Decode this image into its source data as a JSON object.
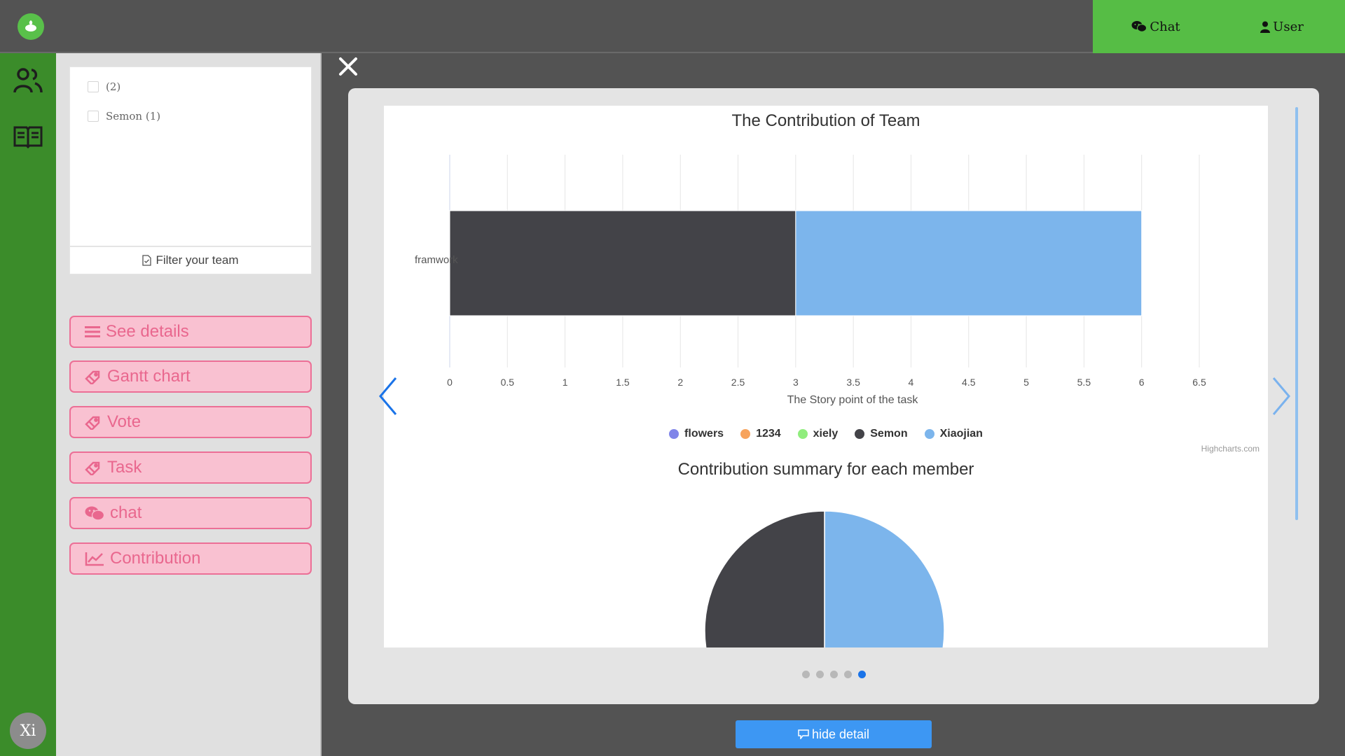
{
  "topnav": {
    "chat_label": "Chat",
    "user_label": "User"
  },
  "sidebar": {
    "avatar_text": "Xi"
  },
  "team_filter": {
    "items": [
      {
        "label": "(2)"
      },
      {
        "label": "Semon (1)"
      }
    ],
    "filter_label": "Filter your team"
  },
  "actions": [
    {
      "label": "See details",
      "icon": "list-icon"
    },
    {
      "label": "Gantt chart",
      "icon": "tag-icon"
    },
    {
      "label": "Vote",
      "icon": "tag-icon"
    },
    {
      "label": "Task",
      "icon": "tag-icon"
    },
    {
      "label": "chat",
      "icon": "wechat-icon"
    },
    {
      "label": "Contribution",
      "icon": "line-chart-icon"
    }
  ],
  "carousel": {
    "slide_count": 5,
    "active_index": 4
  },
  "hide_detail_label": "hide detail",
  "colors": {
    "brand_green": "#56bd45",
    "sidebar_green": "#3b8c2a",
    "pink_fill": "#f9c1d1",
    "pink_border": "#ec6f96",
    "primary_blue": "#3d97f3"
  },
  "chart_data": [
    {
      "type": "bar",
      "orientation": "horizontal",
      "stacked": true,
      "title": "The Contribution of Team",
      "categories": [
        "framwork"
      ],
      "xlabel": "The Story point of the task",
      "xlim": [
        0,
        6.5
      ],
      "ticks": [
        "0",
        "0.5",
        "1",
        "1.5",
        "2",
        "2.5",
        "3",
        "3.5",
        "4",
        "4.5",
        "5",
        "5.5",
        "6",
        "6.5"
      ],
      "grid": true,
      "legend_position": "bottom",
      "series": [
        {
          "name": "flowers",
          "color": "#8085e9",
          "values": [
            0
          ]
        },
        {
          "name": "1234",
          "color": "#f7a35c",
          "values": [
            0
          ]
        },
        {
          "name": "xiely",
          "color": "#90ed7d",
          "values": [
            0
          ]
        },
        {
          "name": "Semon",
          "color": "#434348",
          "values": [
            3
          ]
        },
        {
          "name": "Xiaojian",
          "color": "#7cb5ec",
          "values": [
            3
          ]
        }
      ],
      "credit": "Highcharts.com"
    },
    {
      "type": "pie",
      "title": "Contribution summary for each member",
      "slices": [
        {
          "name": "Xiaojian",
          "value": 3,
          "color": "#7cb5ec"
        },
        {
          "name": "Semon",
          "value": 3,
          "color": "#434348"
        }
      ]
    }
  ]
}
